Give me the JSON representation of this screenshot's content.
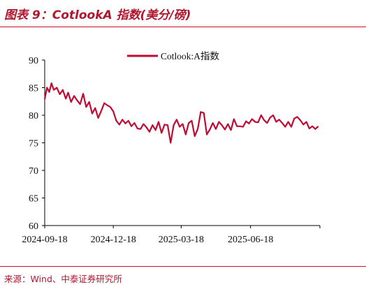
{
  "header": {
    "title": "图表 9：CotlookA 指数(美分/磅)"
  },
  "footer": {
    "source": "来源：Wind、中泰证券研究所"
  },
  "colors": {
    "accent": "#c8102e",
    "series": "#c00a32",
    "axis": "#000000"
  },
  "chart_data": {
    "type": "line",
    "legend_position": "top-center",
    "grid": false,
    "xlim": [
      "2024-09-18",
      "2025-09-18"
    ],
    "ylim": [
      60,
      90
    ],
    "yticks": [
      60,
      65,
      70,
      75,
      80,
      85,
      90
    ],
    "ytick_labels": [
      "60",
      "65",
      "70",
      "75",
      "80",
      "85",
      "90"
    ],
    "xtick_labels": [
      "2024-09-18",
      "2024-12-18",
      "2025-03-18",
      "2025-06-18"
    ],
    "xtick_dates": [
      "2024-09-18",
      "2024-12-18",
      "2025-03-18",
      "2025-06-18"
    ],
    "series": [
      {
        "name": "Cotlook:A指数",
        "x": [
          "2024-09-18",
          "2024-09-21",
          "2024-09-24",
          "2024-09-27",
          "2024-09-30",
          "2024-10-04",
          "2024-10-08",
          "2024-10-12",
          "2024-10-16",
          "2024-10-19",
          "2024-10-23",
          "2024-10-27",
          "2024-10-31",
          "2024-11-04",
          "2024-11-08",
          "2024-11-12",
          "2024-11-16",
          "2024-11-20",
          "2024-11-24",
          "2024-11-28",
          "2024-12-02",
          "2024-12-06",
          "2024-12-10",
          "2024-12-14",
          "2024-12-18",
          "2024-12-22",
          "2024-12-26",
          "2024-12-30",
          "2025-01-03",
          "2025-01-07",
          "2025-01-11",
          "2025-01-15",
          "2025-01-19",
          "2025-01-23",
          "2025-01-27",
          "2025-01-31",
          "2025-02-04",
          "2025-02-08",
          "2025-02-12",
          "2025-02-16",
          "2025-02-20",
          "2025-02-24",
          "2025-02-28",
          "2025-03-04",
          "2025-03-08",
          "2025-03-12",
          "2025-03-16",
          "2025-03-20",
          "2025-03-24",
          "2025-03-28",
          "2025-04-01",
          "2025-04-05",
          "2025-04-09",
          "2025-04-13",
          "2025-04-17",
          "2025-04-21",
          "2025-04-25",
          "2025-04-29",
          "2025-05-03",
          "2025-05-07",
          "2025-05-11",
          "2025-05-15",
          "2025-05-19",
          "2025-05-23",
          "2025-05-27",
          "2025-05-31",
          "2025-06-04",
          "2025-06-08",
          "2025-06-12",
          "2025-06-16",
          "2025-06-20",
          "2025-06-24",
          "2025-06-28",
          "2025-07-02",
          "2025-07-06",
          "2025-07-10",
          "2025-07-14",
          "2025-07-18",
          "2025-07-22",
          "2025-07-26",
          "2025-07-30",
          "2025-08-03",
          "2025-08-07",
          "2025-08-11",
          "2025-08-15",
          "2025-08-19",
          "2025-08-23",
          "2025-08-27",
          "2025-08-31",
          "2025-09-04",
          "2025-09-08",
          "2025-09-12",
          "2025-09-16"
        ],
        "values": [
          82.9,
          85.0,
          84.2,
          85.8,
          84.6,
          85.0,
          83.8,
          84.6,
          83.0,
          84.1,
          82.4,
          83.5,
          82.7,
          82.0,
          83.9,
          81.5,
          82.4,
          80.3,
          81.3,
          79.5,
          80.8,
          82.2,
          81.8,
          81.5,
          80.7,
          79.0,
          78.3,
          79.2,
          78.5,
          79.0,
          78.0,
          78.6,
          77.6,
          77.5,
          78.4,
          77.8,
          77.0,
          78.2,
          77.3,
          78.8,
          76.8,
          78.3,
          78.2,
          75.0,
          78.2,
          79.2,
          77.9,
          78.4,
          76.5,
          78.6,
          79.0,
          76.2,
          77.5,
          80.6,
          80.4,
          76.5,
          77.4,
          78.6,
          77.5,
          78.8,
          78.2,
          77.4,
          78.4,
          77.3,
          79.3,
          78.0,
          78.0,
          77.9,
          78.9,
          78.5,
          79.3,
          78.8,
          78.7,
          80.0,
          79.1,
          78.6,
          79.6,
          80.0,
          78.8,
          79.2,
          78.6,
          77.9,
          78.8,
          77.9,
          79.4,
          79.7,
          79.1,
          78.3,
          78.8,
          77.6,
          78.0,
          77.5,
          78.0
        ]
      }
    ]
  }
}
